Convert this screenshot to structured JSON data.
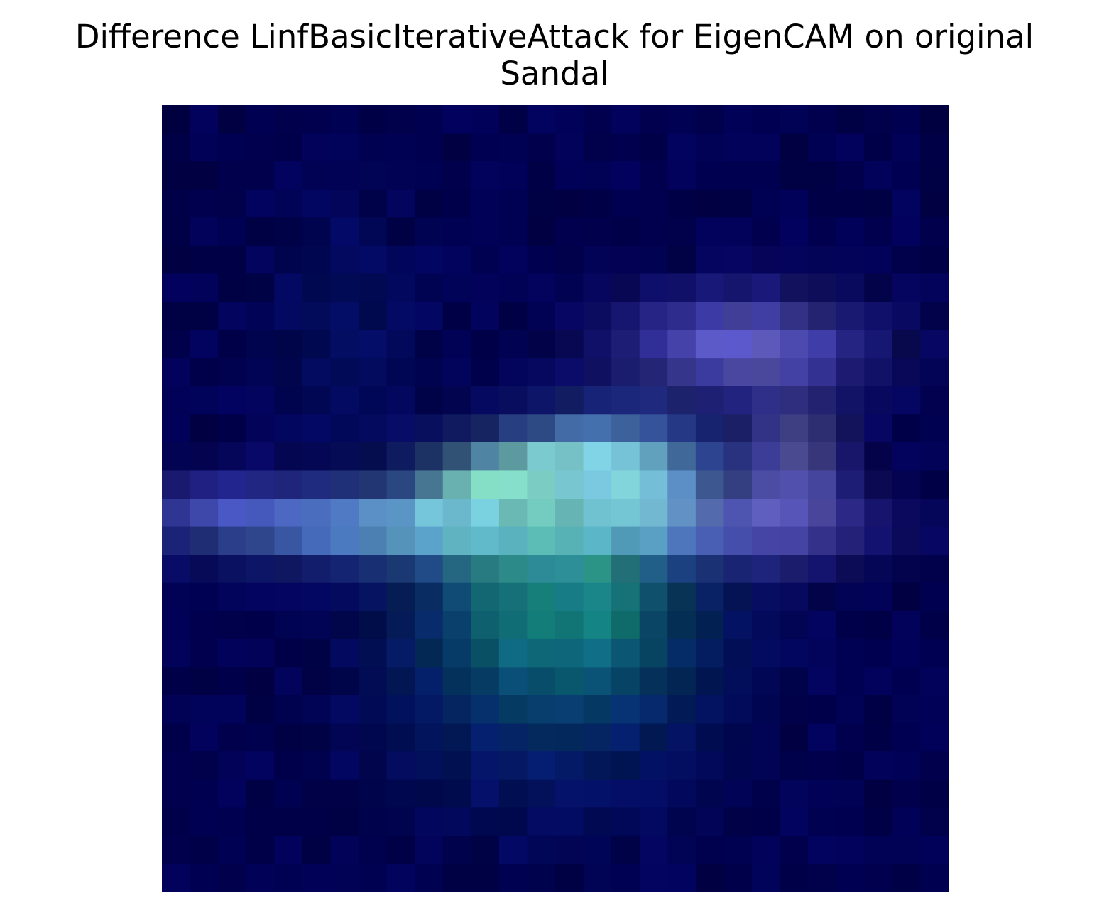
{
  "chart_data": {
    "type": "heatmap",
    "title_lines": [
      "Difference LinfBasicIterativeAttack for EigenCAM on original",
      "Sandal"
    ],
    "grid_rows": 28,
    "grid_cols": 28,
    "axes_visible": false,
    "base_color": "#000050",
    "hotspots": [
      {
        "row": 13.8,
        "col": 13.6,
        "sigma_r": 1.2,
        "sigma_c": 2.6,
        "intensity": 1.0,
        "hue": "cyan",
        "color": "#9ffcd8"
      },
      {
        "row": 15.0,
        "col": 8.5,
        "sigma_r": 0.9,
        "sigma_c": 4.8,
        "intensity": 0.8,
        "hue": "lightblue",
        "color": "#6aa8e8"
      },
      {
        "row": 13.0,
        "col": 16.2,
        "sigma_r": 1.4,
        "sigma_c": 2.2,
        "intensity": 0.75,
        "hue": "lightblue",
        "color": "#72b8ee"
      },
      {
        "row": 16.8,
        "col": 14.2,
        "sigma_r": 2.0,
        "sigma_c": 3.0,
        "intensity": 0.7,
        "hue": "teal",
        "color": "#1e8a78"
      },
      {
        "row": 19.3,
        "col": 14.2,
        "sigma_r": 2.0,
        "sigma_c": 3.2,
        "intensity": 0.55,
        "hue": "teal",
        "color": "#087878"
      },
      {
        "row": 22.5,
        "col": 13.5,
        "sigma_r": 2.4,
        "sigma_c": 4.0,
        "intensity": 0.45,
        "hue": "navy",
        "color": "#08307a"
      },
      {
        "row": 8.5,
        "col": 20.7,
        "sigma_r": 1.2,
        "sigma_c": 2.8,
        "intensity": 0.75,
        "hue": "violet",
        "color": "#7c78e8"
      },
      {
        "row": 12.8,
        "col": 22.5,
        "sigma_r": 1.8,
        "sigma_c": 1.3,
        "intensity": 0.6,
        "hue": "violet",
        "color": "#7a78c8"
      },
      {
        "row": 15.0,
        "col": 21.0,
        "sigma_r": 1.0,
        "sigma_c": 3.0,
        "intensity": 0.55,
        "hue": "violet",
        "color": "#6a60d8"
      },
      {
        "row": 8.0,
        "col": 6.5,
        "sigma_r": 3.0,
        "sigma_c": 2.0,
        "intensity": 0.3,
        "hue": "navy",
        "color": "#082a80"
      },
      {
        "row": 14.2,
        "col": 2.5,
        "sigma_r": 0.8,
        "sigma_c": 2.5,
        "intensity": 0.5,
        "hue": "indigo",
        "color": "#4a40c0"
      }
    ]
  }
}
